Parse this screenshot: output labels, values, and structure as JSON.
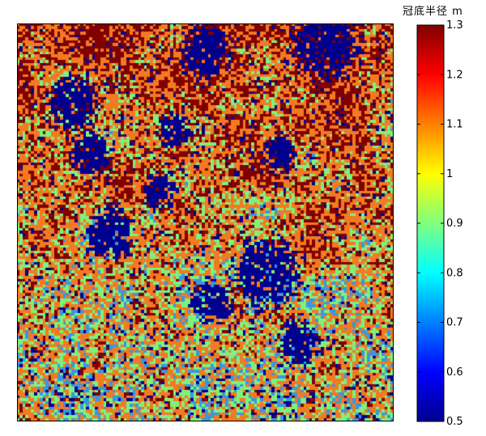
{
  "chart_data": {
    "type": "heatmap",
    "title": "",
    "xlabel": "",
    "ylabel": "",
    "colorbar": {
      "label": "冠底半径 m",
      "range": [
        0.5,
        1.3
      ],
      "ticks": [
        1.3,
        1.2,
        1.1,
        1,
        0.9,
        0.8,
        0.7,
        0.6,
        0.5
      ],
      "tick_labels": [
        "1.3",
        "1.2",
        "1.1",
        "1",
        "0.9",
        "0.8",
        "0.7",
        "0.6",
        "0.5"
      ],
      "colormap": "jet"
    },
    "grid_size": [
      130,
      140
    ],
    "value_levels": [
      0.5,
      0.7,
      0.9,
      1.1,
      1.3
    ],
    "level_colors": [
      "#00008f",
      "#3a96e0",
      "#80f07c",
      "#f27a22",
      "#800000"
    ],
    "dark_blue_patches": [
      {
        "cx": 0.15,
        "cy": 0.2,
        "r": 0.06
      },
      {
        "cx": 0.5,
        "cy": 0.07,
        "r": 0.06
      },
      {
        "cx": 0.82,
        "cy": 0.05,
        "r": 0.08
      },
      {
        "cx": 0.25,
        "cy": 0.53,
        "r": 0.06
      },
      {
        "cx": 0.66,
        "cy": 0.63,
        "r": 0.08
      },
      {
        "cx": 0.75,
        "cy": 0.8,
        "r": 0.05
      },
      {
        "cx": 0.52,
        "cy": 0.7,
        "r": 0.05
      },
      {
        "cx": 0.2,
        "cy": 0.33,
        "r": 0.05
      },
      {
        "cx": 0.7,
        "cy": 0.33,
        "r": 0.04
      },
      {
        "cx": 0.38,
        "cy": 0.42,
        "r": 0.04
      },
      {
        "cx": 0.42,
        "cy": 0.27,
        "r": 0.04
      }
    ]
  }
}
